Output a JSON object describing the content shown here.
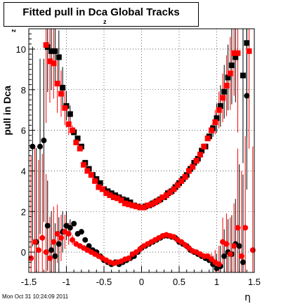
{
  "title": {
    "main": "Fitted pull in Dca Global Tracks",
    "sub": "z"
  },
  "footer": "Mon Oct 31 10:24:09 2011",
  "colors": {
    "series_black": "#000000",
    "series_red": "#ff0000",
    "grid": "#000000"
  },
  "chart_data": {
    "type": "scatter",
    "title": "Fitted pull in Dca Global Tracks",
    "xlabel": "η",
    "ylabel": "pull in Dca",
    "ylabel_sub": "z",
    "xlim": [
      -1.5,
      1.5
    ],
    "ylim": [
      -1.0,
      11.0
    ],
    "x_ticks": [
      "-1.5",
      "-1",
      "-0.5",
      "0",
      "0.5",
      "1",
      "1.5"
    ],
    "y_ticks": [
      "0",
      "2",
      "4",
      "6",
      "8",
      "10"
    ],
    "grid": true,
    "series": [
      {
        "marker": "square",
        "color": "#000000",
        "points": [
          [
            -1.25,
            10.1
          ],
          [
            -1.2,
            9.9
          ],
          [
            -1.15,
            9.9
          ],
          [
            -1.1,
            9.6
          ],
          [
            -1.05,
            8.1
          ],
          [
            -1.0,
            7.2
          ],
          [
            -0.95,
            6.8
          ],
          [
            -0.9,
            5.9
          ],
          [
            -0.85,
            5.6
          ],
          [
            -0.8,
            5.2
          ],
          [
            -0.75,
            4.4
          ],
          [
            -0.7,
            4.1
          ],
          [
            -0.65,
            3.8
          ],
          [
            -0.6,
            3.6
          ],
          [
            -0.55,
            3.4
          ],
          [
            -0.5,
            3.1
          ],
          [
            -0.45,
            3.0
          ],
          [
            -0.4,
            2.9
          ],
          [
            -0.35,
            2.8
          ],
          [
            -0.3,
            2.7
          ],
          [
            -0.25,
            2.6
          ],
          [
            -0.2,
            2.55
          ],
          [
            -0.15,
            2.45
          ],
          [
            -0.1,
            2.3
          ],
          [
            -0.05,
            2.25
          ],
          [
            0.0,
            2.2
          ],
          [
            0.05,
            2.25
          ],
          [
            0.1,
            2.3
          ],
          [
            0.15,
            2.4
          ],
          [
            0.2,
            2.5
          ],
          [
            0.25,
            2.6
          ],
          [
            0.3,
            2.7
          ],
          [
            0.35,
            2.9
          ],
          [
            0.4,
            3.0
          ],
          [
            0.45,
            3.2
          ],
          [
            0.5,
            3.4
          ],
          [
            0.55,
            3.6
          ],
          [
            0.6,
            3.8
          ],
          [
            0.65,
            4.1
          ],
          [
            0.7,
            4.4
          ],
          [
            0.75,
            4.6
          ],
          [
            0.8,
            5.0
          ],
          [
            0.85,
            5.2
          ],
          [
            0.9,
            5.7
          ],
          [
            0.95,
            6.1
          ],
          [
            1.0,
            6.6
          ],
          [
            1.05,
            7.2
          ],
          [
            1.1,
            7.9
          ],
          [
            1.15,
            8.6
          ],
          [
            1.2,
            9.2
          ],
          [
            1.25,
            9.6
          ],
          [
            1.35,
            8.7
          ],
          [
            1.4,
            10.3
          ]
        ]
      },
      {
        "marker": "square",
        "color": "#ff0000",
        "points": [
          [
            -1.27,
            10.2
          ],
          [
            -1.22,
            9.4
          ],
          [
            -1.17,
            9.3
          ],
          [
            -1.12,
            8.3
          ],
          [
            -1.07,
            7.8
          ],
          [
            -1.02,
            7.1
          ],
          [
            -0.97,
            6.3
          ],
          [
            -0.92,
            6.0
          ],
          [
            -0.87,
            5.4
          ],
          [
            -0.82,
            5.1
          ],
          [
            -0.77,
            4.3
          ],
          [
            -0.72,
            4.0
          ],
          [
            -0.67,
            3.8
          ],
          [
            -0.62,
            3.5
          ],
          [
            -0.57,
            3.2
          ],
          [
            -0.52,
            3.1
          ],
          [
            -0.47,
            2.9
          ],
          [
            -0.42,
            2.8
          ],
          [
            -0.37,
            2.7
          ],
          [
            -0.32,
            2.65
          ],
          [
            -0.27,
            2.55
          ],
          [
            -0.22,
            2.4
          ],
          [
            -0.17,
            2.35
          ],
          [
            -0.12,
            2.3
          ],
          [
            -0.07,
            2.25
          ],
          [
            -0.02,
            2.2
          ],
          [
            0.03,
            2.2
          ],
          [
            0.08,
            2.3
          ],
          [
            0.13,
            2.35
          ],
          [
            0.18,
            2.45
          ],
          [
            0.23,
            2.55
          ],
          [
            0.28,
            2.7
          ],
          [
            0.33,
            2.8
          ],
          [
            0.38,
            2.95
          ],
          [
            0.43,
            3.1
          ],
          [
            0.48,
            3.3
          ],
          [
            0.53,
            3.5
          ],
          [
            0.58,
            3.7
          ],
          [
            0.63,
            4.0
          ],
          [
            0.68,
            4.2
          ],
          [
            0.73,
            4.5
          ],
          [
            0.78,
            4.8
          ],
          [
            0.83,
            5.2
          ],
          [
            0.88,
            5.6
          ],
          [
            0.93,
            6.0
          ],
          [
            0.98,
            6.4
          ],
          [
            1.03,
            7.0
          ],
          [
            1.08,
            7.6
          ],
          [
            1.13,
            8.2
          ],
          [
            1.18,
            8.8
          ],
          [
            1.23,
            9.8
          ],
          [
            1.28,
            9.8
          ],
          [
            1.43,
            9.9
          ]
        ]
      },
      {
        "marker": "circle",
        "color": "#000000",
        "points": [
          [
            -1.45,
            5.2
          ],
          [
            -1.4,
            0.5
          ],
          [
            -1.35,
            5.2
          ],
          [
            -1.3,
            5.5
          ],
          [
            -1.25,
            1.3
          ],
          [
            -1.2,
            0.1
          ],
          [
            -1.15,
            -0.2
          ],
          [
            -1.1,
            0.4
          ],
          [
            -1.05,
            1.0
          ],
          [
            -1.0,
            1.3
          ],
          [
            -0.95,
            1.2
          ],
          [
            -0.9,
            1.4
          ],
          [
            -0.85,
            0.9
          ],
          [
            -0.8,
            1.0
          ],
          [
            -0.75,
            0.6
          ],
          [
            -0.7,
            0.3
          ],
          [
            -0.65,
            0.1
          ],
          [
            -0.6,
            0.0
          ],
          [
            -0.55,
            -0.2
          ],
          [
            -0.5,
            -0.4
          ],
          [
            -0.45,
            -0.5
          ],
          [
            -0.4,
            -0.6
          ],
          [
            -0.35,
            -0.5
          ],
          [
            -0.3,
            -0.6
          ],
          [
            -0.25,
            -0.5
          ],
          [
            -0.2,
            -0.4
          ],
          [
            -0.15,
            -0.3
          ],
          [
            -0.1,
            -0.2
          ],
          [
            -0.05,
            0.0
          ],
          [
            0.0,
            0.2
          ],
          [
            0.05,
            0.3
          ],
          [
            0.1,
            0.4
          ],
          [
            0.15,
            0.5
          ],
          [
            0.2,
            0.6
          ],
          [
            0.25,
            0.7
          ],
          [
            0.3,
            0.8
          ],
          [
            0.35,
            0.8
          ],
          [
            0.4,
            0.75
          ],
          [
            0.45,
            0.7
          ],
          [
            0.5,
            0.5
          ],
          [
            0.55,
            0.4
          ],
          [
            0.6,
            0.3
          ],
          [
            0.65,
            0.1
          ],
          [
            0.7,
            0.0
          ],
          [
            0.75,
            -0.1
          ],
          [
            0.8,
            -0.2
          ],
          [
            0.85,
            -0.3
          ],
          [
            0.9,
            -0.4
          ],
          [
            0.95,
            -0.6
          ],
          [
            1.0,
            -0.8
          ],
          [
            1.05,
            -0.7
          ],
          [
            1.1,
            -0.2
          ],
          [
            1.15,
            0.0
          ],
          [
            1.2,
            -0.1
          ],
          [
            1.25,
            0.4
          ],
          [
            1.3,
            0.3
          ],
          [
            1.35,
            -0.5
          ],
          [
            1.4,
            7.7
          ]
        ]
      },
      {
        "marker": "circle",
        "color": "#ff0000",
        "points": [
          [
            -1.47,
            -0.3
          ],
          [
            -1.42,
            0.5
          ],
          [
            -1.37,
            0.1
          ],
          [
            -1.32,
            0.7
          ],
          [
            -1.27,
            0.0
          ],
          [
            -1.22,
            -0.3
          ],
          [
            -1.17,
            0.5
          ],
          [
            -1.12,
            0.9
          ],
          [
            -1.07,
            0.7
          ],
          [
            -1.02,
            1.0
          ],
          [
            -0.97,
            0.9
          ],
          [
            -0.92,
            0.6
          ],
          [
            -0.87,
            0.4
          ],
          [
            -0.82,
            0.3
          ],
          [
            -0.77,
            0.2
          ],
          [
            -0.72,
            0.1
          ],
          [
            -0.67,
            0.0
          ],
          [
            -0.62,
            -0.1
          ],
          [
            -0.57,
            -0.2
          ],
          [
            -0.52,
            -0.3
          ],
          [
            -0.47,
            -0.4
          ],
          [
            -0.42,
            -0.5
          ],
          [
            -0.37,
            -0.55
          ],
          [
            -0.32,
            -0.5
          ],
          [
            -0.27,
            -0.45
          ],
          [
            -0.22,
            -0.35
          ],
          [
            -0.17,
            -0.3
          ],
          [
            -0.12,
            -0.1
          ],
          [
            -0.07,
            0.0
          ],
          [
            -0.02,
            0.15
          ],
          [
            0.03,
            0.3
          ],
          [
            0.08,
            0.4
          ],
          [
            0.13,
            0.5
          ],
          [
            0.18,
            0.6
          ],
          [
            0.23,
            0.7
          ],
          [
            0.28,
            0.8
          ],
          [
            0.33,
            0.85
          ],
          [
            0.38,
            0.8
          ],
          [
            0.43,
            0.75
          ],
          [
            0.48,
            0.6
          ],
          [
            0.53,
            0.5
          ],
          [
            0.58,
            0.35
          ],
          [
            0.63,
            0.2
          ],
          [
            0.68,
            0.05
          ],
          [
            0.73,
            0.0
          ],
          [
            0.78,
            -0.1
          ],
          [
            0.83,
            -0.2
          ],
          [
            0.88,
            -0.2
          ],
          [
            0.93,
            -0.35
          ],
          [
            0.98,
            -0.5
          ],
          [
            1.03,
            -0.6
          ],
          [
            1.08,
            0.5
          ],
          [
            1.13,
            0.4
          ],
          [
            1.18,
            -0.1
          ],
          [
            1.23,
            0.3
          ],
          [
            1.28,
            1.2
          ],
          [
            1.33,
            -0.2
          ],
          [
            1.38,
            1.2
          ],
          [
            1.48,
            0.1
          ]
        ]
      }
    ]
  }
}
